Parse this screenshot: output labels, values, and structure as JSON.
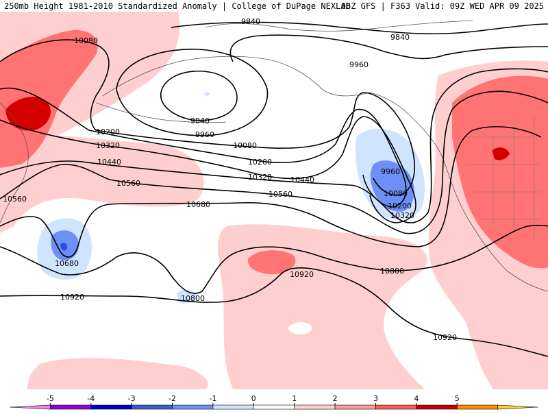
{
  "header": {
    "title_left": "250mb Height 1981-2010 Standardized Anomaly | College of DuPage NEXLAB",
    "title_right": "06Z GFS | F363 Valid: 09Z WED APR 09 2025"
  },
  "contour_labels": [
    "9840",
    "9840",
    "9840",
    "9960",
    "9960",
    "9960",
    "10080",
    "10080",
    "10080",
    "10200",
    "10200",
    "10200",
    "10320",
    "10320",
    "10320",
    "10440",
    "10440",
    "10560",
    "10560",
    "10560",
    "10680",
    "10680",
    "10800",
    "10800",
    "10920",
    "10920",
    "10920"
  ],
  "colorbar": {
    "ticks": [
      "-5",
      "-4",
      "-3",
      "-2",
      "-1",
      "0",
      "1",
      "2",
      "3",
      "4",
      "5"
    ],
    "colors": [
      "#ee82ee",
      "#9400d3",
      "#0000cd",
      "#3a5fcd",
      "#6f8fff",
      "#cde2ff",
      "#ffffff",
      "#ffd0d0",
      "#ff9a9a",
      "#ff5a5a",
      "#cc0000",
      "#ff8c00",
      "#ffcc33"
    ]
  },
  "colors": {
    "pos1": "#ffcfcf",
    "pos2": "#ff7373",
    "pos3": "#d40000",
    "neg1": "#cfe4ff",
    "neg2": "#6e8ff5",
    "neg3": "#2a4fe0"
  }
}
